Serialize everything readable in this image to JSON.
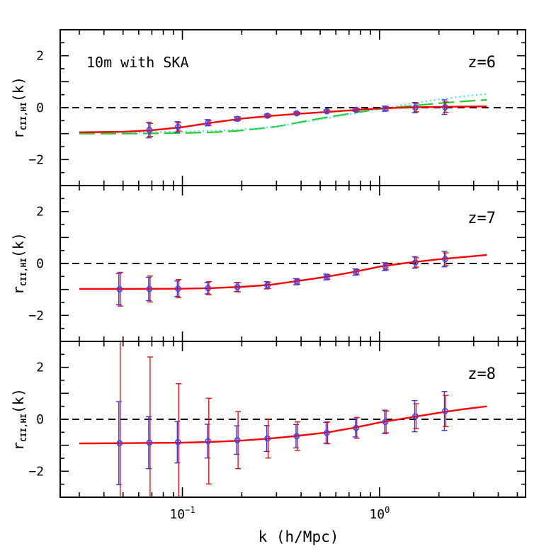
{
  "chart_data": [
    {
      "type": "line",
      "panel_label": "z=6",
      "annotation": "10m with SKA",
      "ylabel": "r_{CII,HI}(k)",
      "ylabel_main": "r",
      "ylabel_sub": "CII,HI",
      "ylabel_tail": "(k)",
      "ylim": [
        -3,
        3
      ],
      "y_ticks": [
        -2,
        0,
        2
      ],
      "x_scale": "log",
      "xlim": [
        0.024,
        5.5
      ],
      "reference_line": 0,
      "model": {
        "x": [
          0.03,
          0.05,
          0.07,
          0.1,
          0.14,
          0.2,
          0.28,
          0.38,
          0.55,
          0.75,
          1.0,
          1.3,
          1.6,
          2.0,
          2.6,
          3.5
        ],
        "y": [
          -0.95,
          -0.93,
          -0.87,
          -0.75,
          -0.58,
          -0.42,
          -0.32,
          -0.24,
          -0.16,
          -0.09,
          -0.03,
          0.0,
          0.02,
          0.03,
          0.04,
          0.05
        ]
      },
      "extra_curves": [
        {
          "color": "#22cc22",
          "dash": "long-dash",
          "x": [
            0.03,
            0.05,
            0.1,
            0.15,
            0.2,
            0.3,
            0.4,
            0.55,
            0.75,
            1.0,
            1.5,
            2.0,
            3.0,
            3.5
          ],
          "y": [
            -1.0,
            -1.0,
            -0.98,
            -0.94,
            -0.88,
            -0.73,
            -0.55,
            -0.36,
            -0.2,
            -0.05,
            0.08,
            0.17,
            0.27,
            0.3
          ]
        },
        {
          "color": "#44ddee",
          "dash": "dotted",
          "x": [
            0.03,
            0.05,
            0.1,
            0.15,
            0.2,
            0.3,
            0.4,
            0.55,
            0.75,
            1.0,
            1.5,
            2.0,
            3.0,
            3.5
          ],
          "y": [
            -0.96,
            -0.96,
            -0.93,
            -0.89,
            -0.84,
            -0.73,
            -0.58,
            -0.4,
            -0.22,
            -0.05,
            0.18,
            0.32,
            0.48,
            0.52
          ]
        }
      ],
      "points": [
        {
          "x": 0.068,
          "y": -0.86,
          "err_blue": 0.3,
          "err_red": 0.25
        },
        {
          "x": 0.095,
          "y": -0.74,
          "err_blue": 0.2,
          "err_red": 0.16
        },
        {
          "x": 0.135,
          "y": -0.58,
          "err_blue": 0.12,
          "err_red": 0.1
        },
        {
          "x": 0.19,
          "y": -0.43,
          "err_blue": 0.08,
          "err_red": 0.07
        },
        {
          "x": 0.27,
          "y": -0.31,
          "err_blue": 0.06,
          "err_red": 0.05
        },
        {
          "x": 0.38,
          "y": -0.22,
          "err_blue": 0.05,
          "err_red": 0.04
        },
        {
          "x": 0.54,
          "y": -0.14,
          "err_blue": 0.05,
          "err_red": 0.04
        },
        {
          "x": 0.76,
          "y": -0.08,
          "err_blue": 0.06,
          "err_red": 0.05
        },
        {
          "x": 1.07,
          "y": -0.04,
          "err_blue": 0.1,
          "err_red": 0.08
        },
        {
          "x": 1.52,
          "y": 0.0,
          "err_blue": 0.2,
          "err_red": 0.16
        },
        {
          "x": 2.15,
          "y": 0.02,
          "err_blue": 0.28,
          "err_red": 0.2
        }
      ]
    },
    {
      "type": "line",
      "panel_label": "z=7",
      "ylabel": "r_{CII,HI}(k)",
      "ylabel_main": "r",
      "ylabel_sub": "CII,HI",
      "ylabel_tail": "(k)",
      "ylim": [
        -3,
        3
      ],
      "y_ticks": [
        -2,
        0,
        2
      ],
      "x_scale": "log",
      "xlim": [
        0.024,
        5.5
      ],
      "reference_line": 0,
      "model": {
        "x": [
          0.03,
          0.05,
          0.1,
          0.14,
          0.2,
          0.28,
          0.38,
          0.55,
          0.75,
          1.0,
          1.3,
          1.6,
          2.0,
          2.6,
          3.5
        ],
        "y": [
          -0.98,
          -0.98,
          -0.97,
          -0.95,
          -0.9,
          -0.82,
          -0.68,
          -0.5,
          -0.32,
          -0.12,
          0.0,
          0.08,
          0.16,
          0.24,
          0.33
        ]
      },
      "extra_curves": [],
      "points": [
        {
          "x": 0.048,
          "y": -0.99,
          "err_blue": 0.6,
          "err_red": 0.65
        },
        {
          "x": 0.068,
          "y": -0.98,
          "err_blue": 0.45,
          "err_red": 0.5
        },
        {
          "x": 0.095,
          "y": -0.97,
          "err_blue": 0.3,
          "err_red": 0.35
        },
        {
          "x": 0.135,
          "y": -0.95,
          "err_blue": 0.22,
          "err_red": 0.25
        },
        {
          "x": 0.19,
          "y": -0.91,
          "err_blue": 0.17,
          "err_red": 0.18
        },
        {
          "x": 0.27,
          "y": -0.84,
          "err_blue": 0.14,
          "err_red": 0.12
        },
        {
          "x": 0.38,
          "y": -0.7,
          "err_blue": 0.12,
          "err_red": 0.1
        },
        {
          "x": 0.54,
          "y": -0.52,
          "err_blue": 0.11,
          "err_red": 0.09
        },
        {
          "x": 0.76,
          "y": -0.33,
          "err_blue": 0.12,
          "err_red": 0.1
        },
        {
          "x": 1.07,
          "y": -0.12,
          "err_blue": 0.15,
          "err_red": 0.12
        },
        {
          "x": 1.52,
          "y": 0.04,
          "err_blue": 0.22,
          "err_red": 0.18
        },
        {
          "x": 2.15,
          "y": 0.17,
          "err_blue": 0.3,
          "err_red": 0.24
        }
      ]
    },
    {
      "type": "line",
      "panel_label": "z=8",
      "ylabel": "r_{CII,HI}(k)",
      "ylabel_main": "r",
      "ylabel_sub": "CII,HI",
      "ylabel_tail": "(k)",
      "ylim": [
        -3,
        3
      ],
      "y_ticks": [
        -2,
        0,
        2
      ],
      "x_scale": "log",
      "xlim": [
        0.024,
        5.5
      ],
      "xlabel": "k (h/Mpc)",
      "x_ticks": [
        {
          "value": 0.1,
          "base": "10",
          "exp": "−1"
        },
        {
          "value": 1.0,
          "base": "10",
          "exp": "0"
        }
      ],
      "reference_line": 0,
      "model": {
        "x": [
          0.03,
          0.05,
          0.1,
          0.14,
          0.2,
          0.28,
          0.38,
          0.55,
          0.75,
          1.0,
          1.3,
          1.6,
          2.0,
          2.6,
          3.5
        ],
        "y": [
          -0.93,
          -0.92,
          -0.9,
          -0.87,
          -0.82,
          -0.74,
          -0.64,
          -0.5,
          -0.32,
          -0.12,
          0.02,
          0.13,
          0.25,
          0.38,
          0.5
        ]
      },
      "extra_curves": [],
      "points": [
        {
          "x": 0.048,
          "y": -0.92,
          "err_blue": 1.6,
          "err_red": 4.0
        },
        {
          "x": 0.068,
          "y": -0.9,
          "err_blue": 1.0,
          "err_red": 3.3
        },
        {
          "x": 0.095,
          "y": -0.88,
          "err_blue": 0.8,
          "err_red": 2.25
        },
        {
          "x": 0.135,
          "y": -0.84,
          "err_blue": 0.65,
          "err_red": 1.65
        },
        {
          "x": 0.19,
          "y": -0.8,
          "err_blue": 0.55,
          "err_red": 1.1
        },
        {
          "x": 0.27,
          "y": -0.74,
          "err_blue": 0.5,
          "err_red": 0.75
        },
        {
          "x": 0.38,
          "y": -0.65,
          "err_blue": 0.45,
          "err_red": 0.55
        },
        {
          "x": 0.54,
          "y": -0.52,
          "err_blue": 0.4,
          "err_red": 0.42
        },
        {
          "x": 0.76,
          "y": -0.33,
          "err_blue": 0.35,
          "err_red": 0.4
        },
        {
          "x": 1.07,
          "y": -0.1,
          "err_blue": 0.45,
          "err_red": 0.42
        },
        {
          "x": 1.52,
          "y": 0.12,
          "err_blue": 0.6,
          "err_red": 0.48
        },
        {
          "x": 2.15,
          "y": 0.32,
          "err_blue": 0.75,
          "err_red": 0.6
        }
      ]
    }
  ],
  "colors": {
    "model_line": "#ff0000",
    "error_blue": "#3333ee",
    "error_red": "#ee1111",
    "marker": "#4444ee",
    "reference_line": "#000000"
  }
}
